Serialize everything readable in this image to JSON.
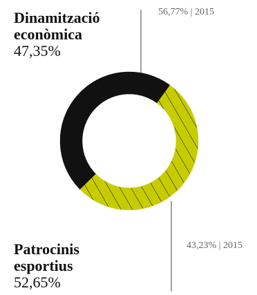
{
  "chart_data": {
    "type": "pie",
    "variant": "donut",
    "series": [
      {
        "name": "Dinamització econòmica",
        "name_lines": [
          "Dinamització",
          "econòmica"
        ],
        "value": 47.35,
        "value_label": "47,35%",
        "reference_label": "56,77% | 2015",
        "color": "#111111",
        "pattern": "solid"
      },
      {
        "name": "Patrocinis esportius",
        "name_lines": [
          "Patrocinis",
          "esportius"
        ],
        "value": 52.65,
        "value_label": "52,65%",
        "reference_label": "43,23% | 2015",
        "color": "#c7cc00",
        "pattern": "diagonal-hatch"
      }
    ]
  },
  "colors": {
    "dark_slice": "#111111",
    "accent_slice": "#c7cc00",
    "hatch": "#222222",
    "leader_line": "#444444",
    "reference_text": "#666666"
  }
}
